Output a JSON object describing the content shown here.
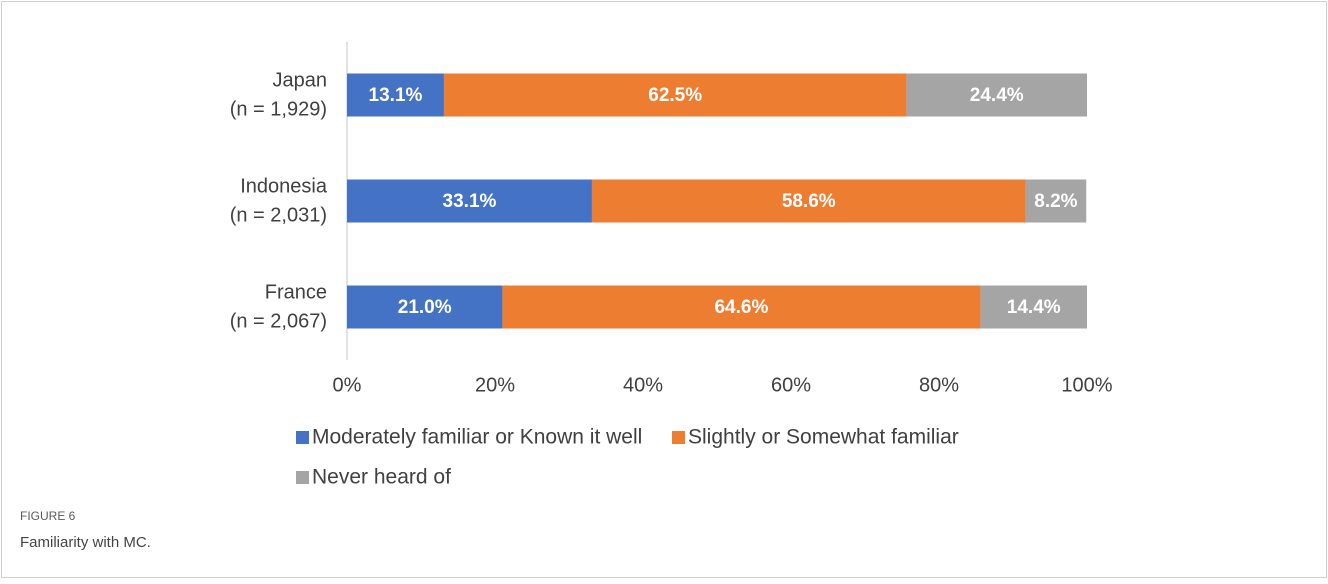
{
  "chart_data": {
    "type": "bar_stacked_horizontal",
    "categories": [
      [
        "Japan",
        "(n = 1,929)"
      ],
      [
        "Indonesia",
        "(n = 2,031)"
      ],
      [
        "France",
        "(n = 2,067)"
      ]
    ],
    "series": [
      {
        "name": "Moderately familiar or Known it well",
        "color": "#4472c4",
        "values": [
          13.1,
          33.1,
          21.0
        ],
        "value_labels": [
          "13.1%",
          "33.1%",
          "21.0%"
        ]
      },
      {
        "name": "Slightly or Somewhat familiar",
        "color": "#ed7d31",
        "values": [
          62.5,
          58.6,
          64.6
        ],
        "value_labels": [
          "62.5%",
          "58.6%",
          "64.6%"
        ]
      },
      {
        "name": "Never heard of",
        "color": "#a5a5a5",
        "values": [
          24.4,
          8.2,
          14.4
        ],
        "value_labels": [
          "24.4%",
          "8.2%",
          "14.4%"
        ]
      }
    ],
    "xlim": [
      0,
      100
    ],
    "xticks": [
      {
        "value": 0,
        "label": "0%"
      },
      {
        "value": 20,
        "label": "20%"
      },
      {
        "value": 40,
        "label": "40%"
      },
      {
        "value": 60,
        "label": "60%"
      },
      {
        "value": 80,
        "label": "80%"
      },
      {
        "value": 100,
        "label": "100%"
      }
    ],
    "grid": false,
    "legend": "bottom"
  },
  "figure": {
    "label": "FIGURE 6",
    "caption": "Familiarity with MC."
  }
}
